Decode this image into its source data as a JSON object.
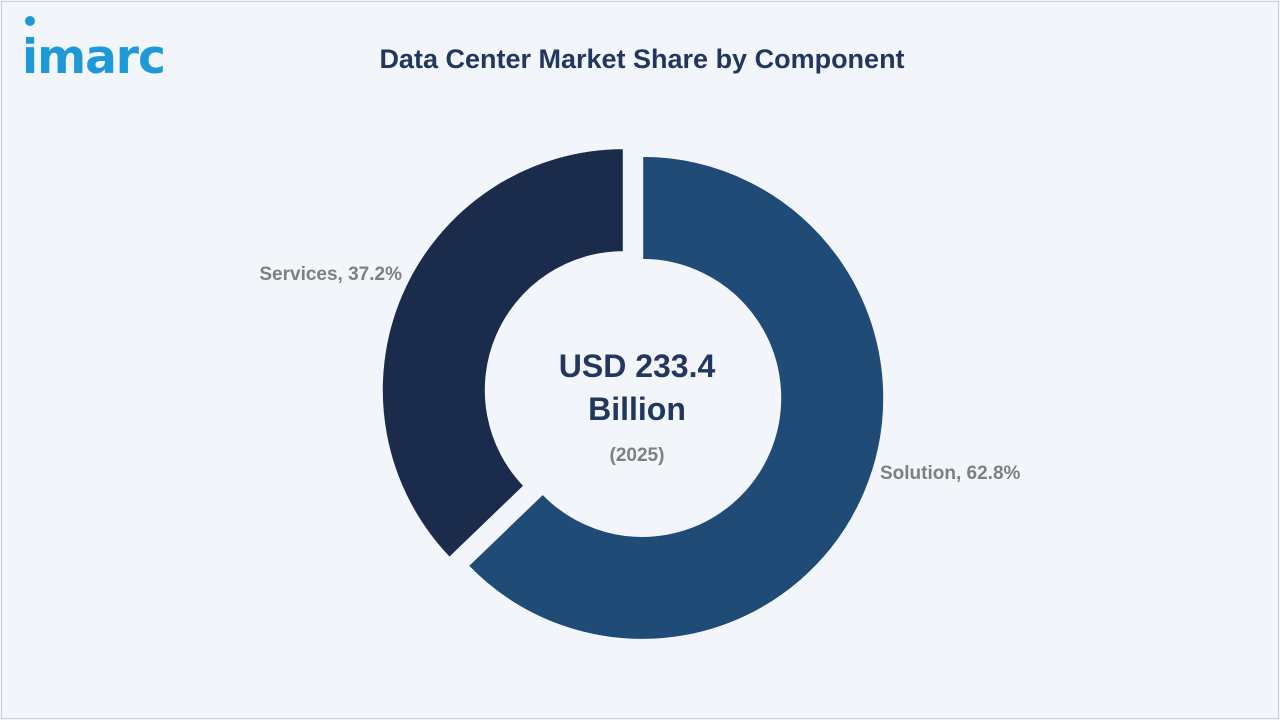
{
  "brand": {
    "logo_text": "imarc"
  },
  "header": {
    "title": "Data Center Market Share by Component"
  },
  "chart_data": {
    "type": "pie",
    "style": "donut",
    "title": "Data Center Market Share by Component",
    "center_label": {
      "value": "USD 233.4",
      "unit": "Billion",
      "year": "(2025)"
    },
    "slices": [
      {
        "name": "Solution",
        "value": 62.8,
        "label": "Solution, 62.8%",
        "color": "#1f4b76"
      },
      {
        "name": "Services",
        "value": 37.2,
        "label": "Services, 37.2%",
        "color": "#1b2b4c"
      }
    ]
  },
  "colors": {
    "title": "#22375e",
    "label": "#7f7f7f",
    "background": "#f2f5fa",
    "brand": "#1d9ad6"
  }
}
